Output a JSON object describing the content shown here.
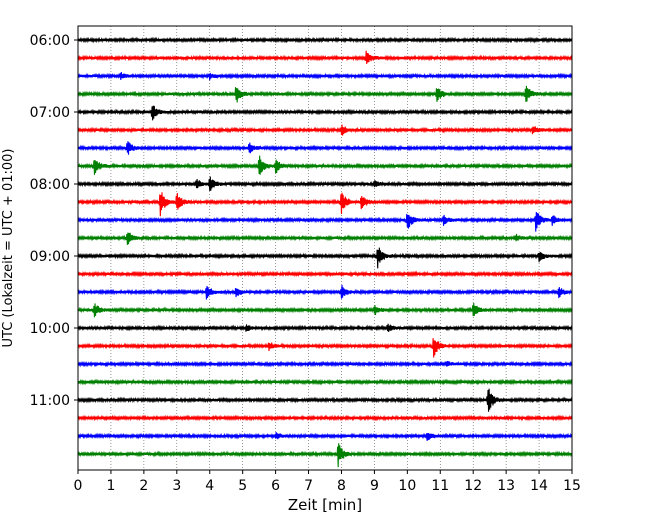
{
  "chart_data": {
    "type": "line",
    "title": "",
    "xlabel": "Zeit  [min]",
    "ylabel": "UTC (Lokalzeit = UTC + 01:00)",
    "xlim": [
      0,
      15
    ],
    "x_ticks": [
      0,
      1,
      2,
      3,
      4,
      5,
      6,
      7,
      8,
      9,
      10,
      11,
      12,
      13,
      14,
      15
    ],
    "y_tick_labels": [
      "06:00",
      "07:00",
      "08:00",
      "09:00",
      "10:00",
      "11:00"
    ],
    "trace_interval_min": 15,
    "grid": "vertical dotted",
    "series_colors": [
      "#000000",
      "#ff0000",
      "#0000ff",
      "#008000"
    ],
    "traces": [
      {
        "start": "06:00",
        "color": "#000000",
        "events": []
      },
      {
        "start": "06:15",
        "color": "#ff0000",
        "events": [
          {
            "t": 8.75,
            "amp": 0.45
          }
        ]
      },
      {
        "start": "06:30",
        "color": "#0000ff",
        "events": [
          {
            "t": 1.3,
            "amp": 0.2
          },
          {
            "t": 4.0,
            "amp": 0.2
          }
        ]
      },
      {
        "start": "06:45",
        "color": "#008000",
        "events": [
          {
            "t": 4.8,
            "amp": 0.6
          },
          {
            "t": 10.9,
            "amp": 0.5
          },
          {
            "t": 13.6,
            "amp": 0.6
          }
        ]
      },
      {
        "start": "07:00",
        "color": "#000000",
        "events": [
          {
            "t": 2.25,
            "amp": 0.55
          }
        ]
      },
      {
        "start": "07:15",
        "color": "#ff0000",
        "events": [
          {
            "t": 8.0,
            "amp": 0.35
          },
          {
            "t": 13.8,
            "amp": 0.3
          }
        ]
      },
      {
        "start": "07:30",
        "color": "#0000ff",
        "events": [
          {
            "t": 1.5,
            "amp": 0.45
          },
          {
            "t": 5.2,
            "amp": 0.35
          }
        ]
      },
      {
        "start": "07:45",
        "color": "#008000",
        "events": [
          {
            "t": 0.5,
            "amp": 0.55
          },
          {
            "t": 5.5,
            "amp": 0.65
          },
          {
            "t": 6.0,
            "amp": 0.45
          }
        ]
      },
      {
        "start": "08:00",
        "color": "#000000",
        "events": [
          {
            "t": 3.6,
            "amp": 0.3
          },
          {
            "t": 4.0,
            "amp": 0.45
          },
          {
            "t": 9.0,
            "amp": 0.2
          }
        ]
      },
      {
        "start": "08:15",
        "color": "#ff0000",
        "events": [
          {
            "t": 2.5,
            "amp": 0.9
          },
          {
            "t": 3.0,
            "amp": 0.55
          },
          {
            "t": 8.0,
            "amp": 0.7
          },
          {
            "t": 8.6,
            "amp": 0.55
          }
        ]
      },
      {
        "start": "08:30",
        "color": "#0000ff",
        "events": [
          {
            "t": 10.0,
            "amp": 0.6
          },
          {
            "t": 11.1,
            "amp": 0.3
          },
          {
            "t": 13.9,
            "amp": 0.65
          },
          {
            "t": 14.4,
            "amp": 0.3
          }
        ]
      },
      {
        "start": "08:45",
        "color": "#008000",
        "events": [
          {
            "t": 1.5,
            "amp": 0.5
          },
          {
            "t": 13.3,
            "amp": 0.2
          }
        ]
      },
      {
        "start": "09:00",
        "color": "#000000",
        "events": [
          {
            "t": 9.1,
            "amp": 0.7
          },
          {
            "t": 14.0,
            "amp": 0.35
          }
        ]
      },
      {
        "start": "09:15",
        "color": "#ff0000",
        "events": []
      },
      {
        "start": "09:30",
        "color": "#0000ff",
        "events": [
          {
            "t": 3.9,
            "amp": 0.45
          },
          {
            "t": 4.8,
            "amp": 0.3
          },
          {
            "t": 8.0,
            "amp": 0.45
          },
          {
            "t": 14.6,
            "amp": 0.35
          }
        ]
      },
      {
        "start": "09:45",
        "color": "#008000",
        "events": [
          {
            "t": 0.5,
            "amp": 0.45
          },
          {
            "t": 9.0,
            "amp": 0.3
          },
          {
            "t": 12.0,
            "amp": 0.45
          }
        ]
      },
      {
        "start": "10:00",
        "color": "#000000",
        "events": [
          {
            "t": 5.1,
            "amp": 0.2
          },
          {
            "t": 9.4,
            "amp": 0.25
          }
        ]
      },
      {
        "start": "10:15",
        "color": "#ff0000",
        "events": [
          {
            "t": 5.8,
            "amp": 0.3
          },
          {
            "t": 10.8,
            "amp": 0.7
          }
        ]
      },
      {
        "start": "10:30",
        "color": "#0000ff",
        "events": [
          {
            "t": 11.2,
            "amp": 0.15
          }
        ]
      },
      {
        "start": "10:45",
        "color": "#008000",
        "events": []
      },
      {
        "start": "11:00",
        "color": "#000000",
        "events": [
          {
            "t": 12.45,
            "amp": 0.85
          }
        ]
      },
      {
        "start": "11:15",
        "color": "#ff0000",
        "events": []
      },
      {
        "start": "11:30",
        "color": "#0000ff",
        "events": [
          {
            "t": 6.0,
            "amp": 0.2
          },
          {
            "t": 10.6,
            "amp": 0.3
          }
        ]
      },
      {
        "start": "11:45",
        "color": "#008000",
        "events": [
          {
            "t": 7.9,
            "amp": 0.75
          }
        ]
      }
    ]
  }
}
